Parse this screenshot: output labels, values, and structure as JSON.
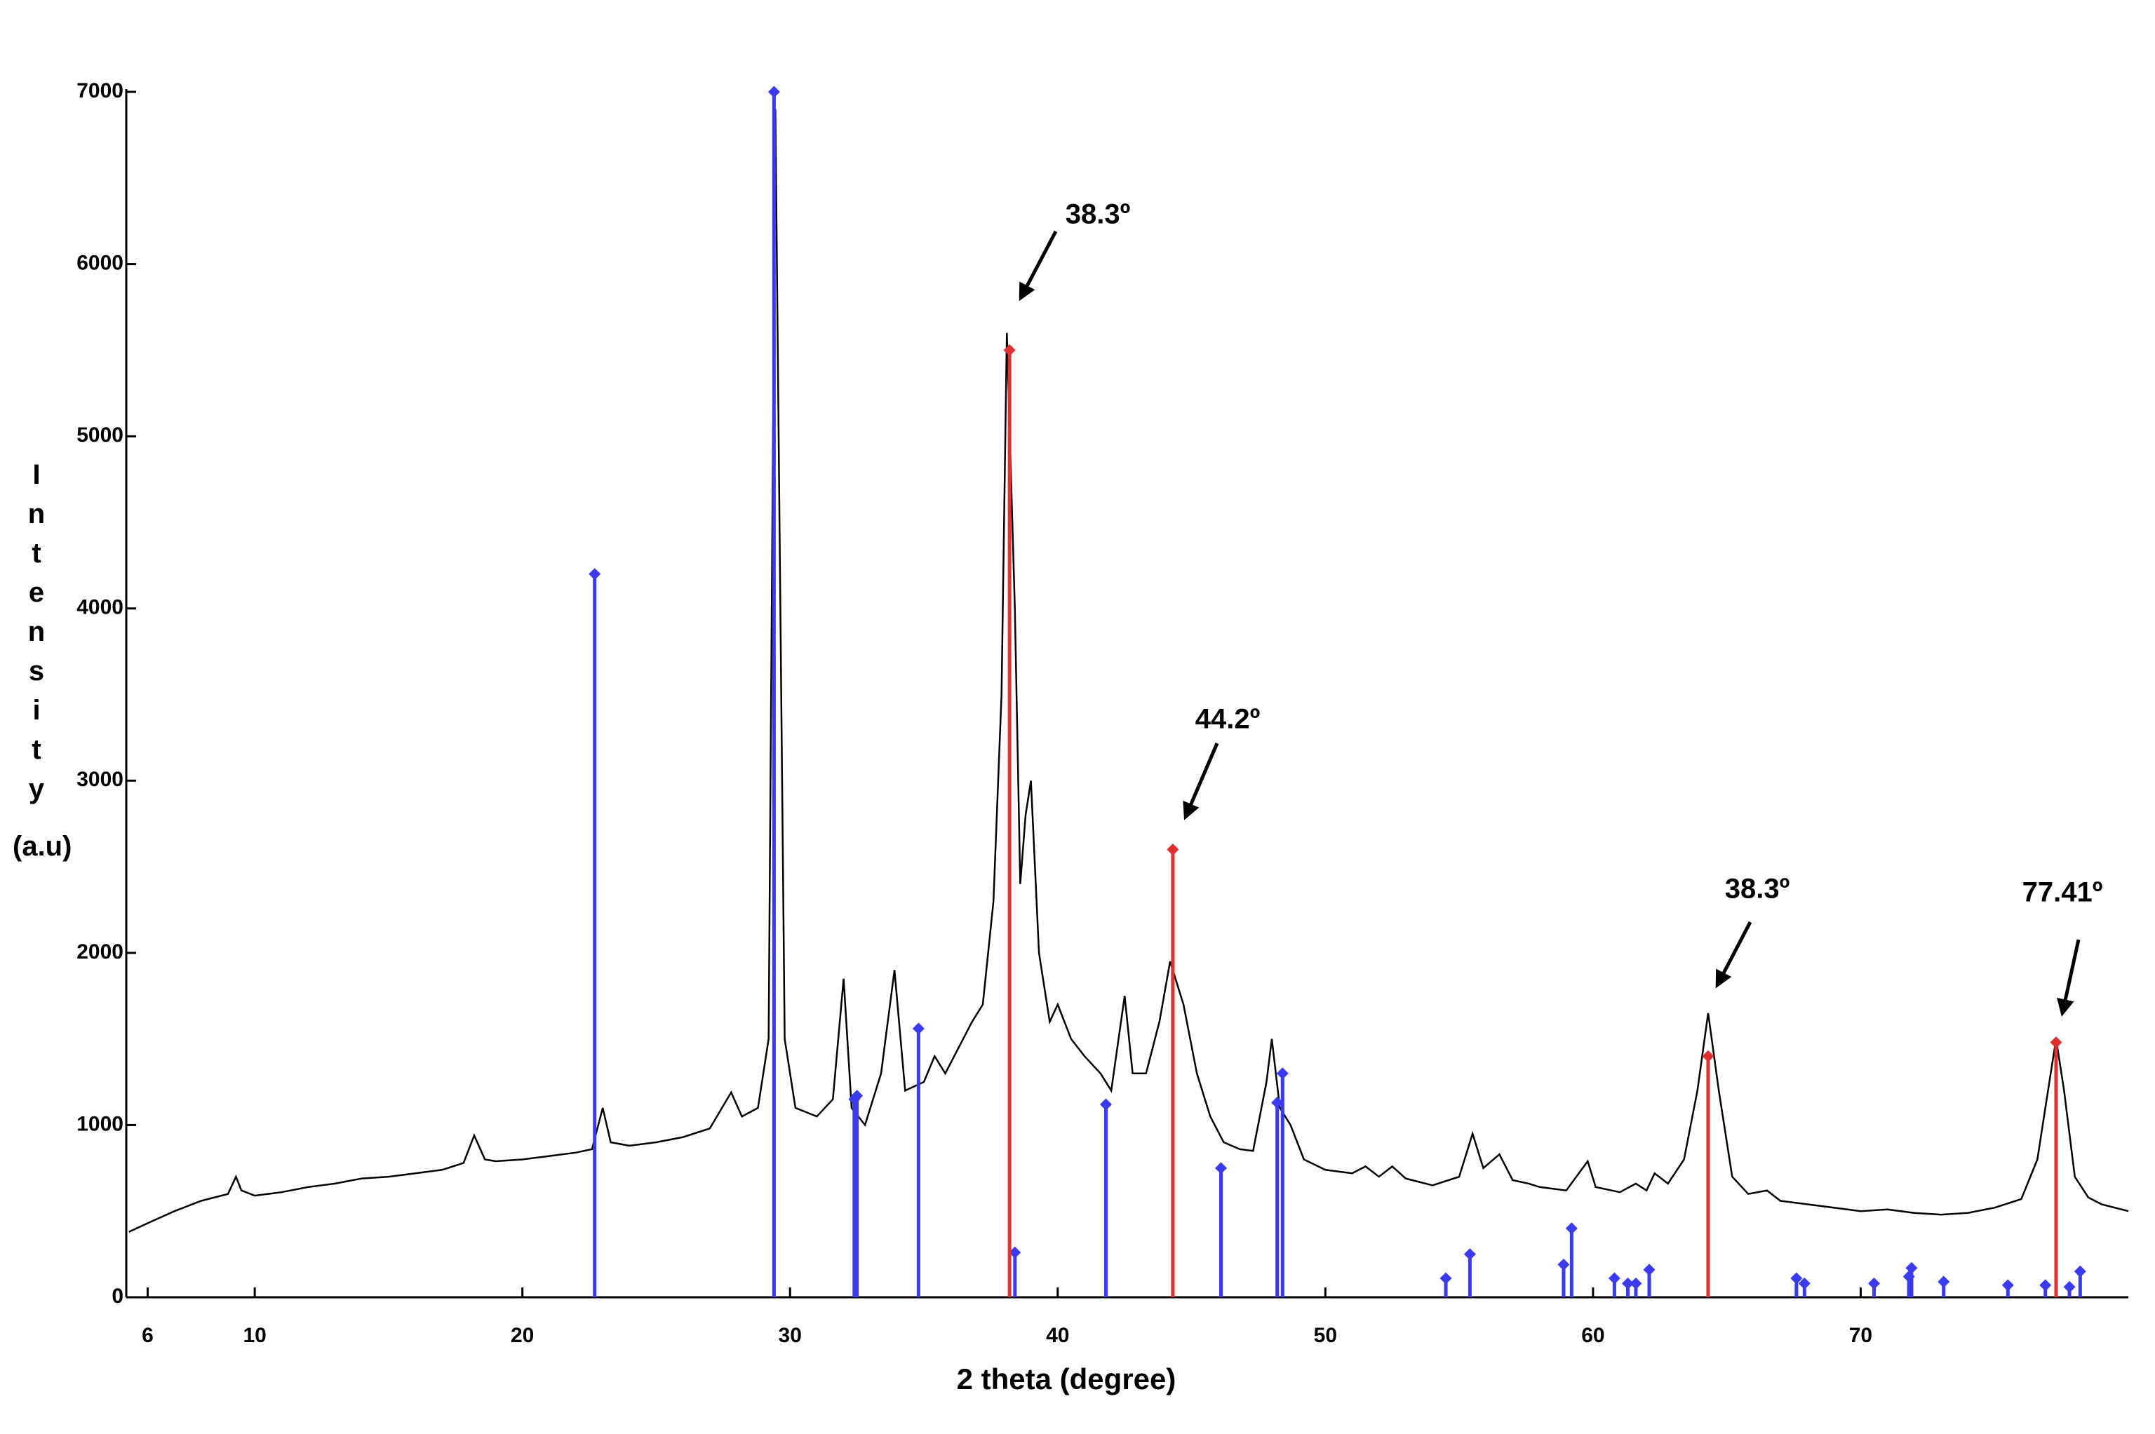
{
  "chart_data": {
    "type": "line",
    "x_label": "2 theta (degree)",
    "y_label": "Intensity",
    "y_unit": "(a.u)",
    "xlim": [
      5.2,
      80
    ],
    "ylim": [
      0,
      7000
    ],
    "xticks": [
      6,
      10,
      20,
      30,
      40,
      50,
      60,
      70
    ],
    "yticks": [
      0,
      1000,
      2000,
      3000,
      4000,
      5000,
      6000,
      7000
    ],
    "grid": false,
    "series": [
      {
        "type": "line",
        "color": "#000000",
        "x": [
          5.3,
          6,
          7,
          8,
          9,
          9.3,
          9.5,
          10,
          11,
          12,
          13,
          14,
          15,
          16,
          17,
          17.8,
          18.2,
          18.6,
          19,
          20,
          21,
          22,
          22.6,
          23,
          23.3,
          24,
          25,
          26,
          27,
          27.8,
          28.2,
          28.8,
          29.2,
          29.45,
          29.8,
          30.2,
          31,
          31.6,
          32,
          32.3,
          32.8,
          33.4,
          33.9,
          34.3,
          35,
          35.4,
          35.8,
          36.3,
          36.8,
          37.2,
          37.6,
          37.9,
          38.1,
          38.4,
          38.6,
          38.8,
          39,
          39.3,
          39.7,
          40,
          40.5,
          41,
          41.6,
          42,
          42.5,
          42.8,
          43.3,
          43.8,
          44.2,
          44.7,
          45.2,
          45.7,
          46.2,
          46.8,
          47.3,
          47.8,
          48,
          48.3,
          48.7,
          49.2,
          50,
          51,
          51.5,
          52,
          52.5,
          53,
          54,
          55,
          55.5,
          55.9,
          56.5,
          57,
          57.6,
          58,
          59,
          59.8,
          60.1,
          61,
          61.6,
          62,
          62.3,
          62.8,
          63.4,
          63.9,
          64.3,
          64.7,
          65.2,
          65.8,
          66.5,
          67,
          68,
          69,
          70,
          71,
          72,
          73,
          74,
          75,
          76,
          76.6,
          77,
          77.3,
          77.6,
          78,
          78.5,
          79,
          80
        ],
        "values": [
          380,
          430,
          500,
          560,
          600,
          700,
          620,
          590,
          610,
          640,
          660,
          690,
          700,
          720,
          740,
          780,
          940,
          800,
          790,
          800,
          820,
          840,
          860,
          1100,
          900,
          880,
          900,
          930,
          980,
          1190,
          1050,
          1100,
          1500,
          6900,
          1500,
          1100,
          1050,
          1150,
          1850,
          1100,
          1000,
          1300,
          1900,
          1200,
          1250,
          1400,
          1300,
          1450,
          1600,
          1700,
          2300,
          3500,
          5600,
          4000,
          2400,
          2800,
          3000,
          2000,
          1600,
          1700,
          1500,
          1400,
          1300,
          1200,
          1750,
          1300,
          1300,
          1600,
          1950,
          1700,
          1300,
          1050,
          900,
          860,
          850,
          1250,
          1500,
          1100,
          1000,
          800,
          740,
          720,
          760,
          700,
          760,
          690,
          650,
          700,
          950,
          750,
          830,
          680,
          660,
          640,
          620,
          790,
          640,
          610,
          660,
          620,
          720,
          660,
          800,
          1200,
          1650,
          1200,
          700,
          600,
          620,
          560,
          540,
          520,
          500,
          510,
          490,
          480,
          490,
          520,
          570,
          800,
          1200,
          1500,
          1200,
          700,
          580,
          540,
          500
        ]
      },
      {
        "type": "stem",
        "color": "#3a3af0",
        "x": [
          22.7,
          29.4,
          32.4,
          32.5,
          34.8,
          38.4,
          41.8,
          46.1,
          48.2,
          48.4,
          54.5,
          55.4,
          58.9,
          59.2,
          60.8,
          61.3,
          61.6,
          62.1,
          67.6,
          67.9,
          70.5,
          71.8,
          71.9,
          73.1,
          75.5,
          76.9,
          77.8,
          78.2
        ],
        "values": [
          4200,
          7000,
          1150,
          1170,
          1560,
          260,
          1120,
          750,
          1130,
          1300,
          110,
          250,
          190,
          400,
          110,
          80,
          80,
          160,
          110,
          80,
          80,
          120,
          170,
          90,
          70,
          70,
          60,
          150
        ]
      },
      {
        "type": "stem",
        "color": "#e03030",
        "x": [
          38.2,
          44.3,
          64.3,
          77.3
        ],
        "values": [
          5500,
          2600,
          1400,
          1480
        ]
      }
    ],
    "annotations": [
      "38.3º",
      "44.2º",
      "38.3º",
      "77.41º"
    ]
  }
}
